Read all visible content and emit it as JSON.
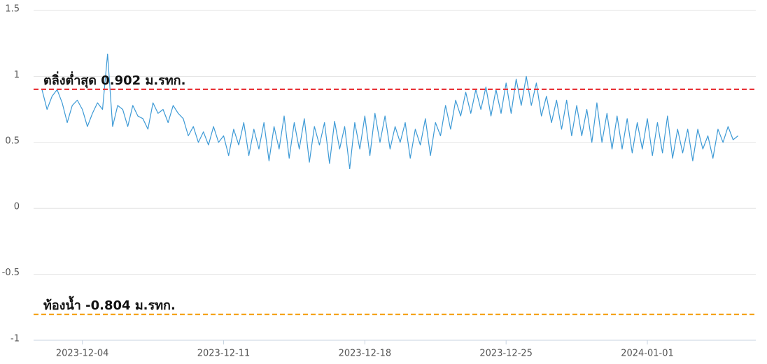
{
  "chart_data": {
    "type": "line",
    "x": [
      "2023-12-02T00:00",
      "2023-12-02T06:00",
      "2023-12-02T12:00",
      "2023-12-02T18:00",
      "2023-12-03T00:00",
      "2023-12-03T06:00",
      "2023-12-03T12:00",
      "2023-12-03T18:00",
      "2023-12-04T00:00",
      "2023-12-04T06:00",
      "2023-12-04T12:00",
      "2023-12-04T18:00",
      "2023-12-05T00:00",
      "2023-12-05T06:00",
      "2023-12-05T12:00",
      "2023-12-05T18:00",
      "2023-12-06T00:00",
      "2023-12-06T06:00",
      "2023-12-06T12:00",
      "2023-12-06T18:00",
      "2023-12-07T00:00",
      "2023-12-07T06:00",
      "2023-12-07T12:00",
      "2023-12-07T18:00",
      "2023-12-08T00:00",
      "2023-12-08T06:00",
      "2023-12-08T12:00",
      "2023-12-08T18:00",
      "2023-12-09T00:00",
      "2023-12-09T06:00",
      "2023-12-09T12:00",
      "2023-12-09T18:00",
      "2023-12-10T00:00",
      "2023-12-10T06:00",
      "2023-12-10T12:00",
      "2023-12-10T18:00",
      "2023-12-11T00:00",
      "2023-12-11T06:00",
      "2023-12-11T12:00",
      "2023-12-11T18:00",
      "2023-12-12T00:00",
      "2023-12-12T06:00",
      "2023-12-12T12:00",
      "2023-12-12T18:00",
      "2023-12-13T00:00",
      "2023-12-13T06:00",
      "2023-12-13T12:00",
      "2023-12-13T18:00",
      "2023-12-14T00:00",
      "2023-12-14T06:00",
      "2023-12-14T12:00",
      "2023-12-14T18:00",
      "2023-12-15T00:00",
      "2023-12-15T06:00",
      "2023-12-15T12:00",
      "2023-12-15T18:00",
      "2023-12-16T00:00",
      "2023-12-16T06:00",
      "2023-12-16T12:00",
      "2023-12-16T18:00",
      "2023-12-17T00:00",
      "2023-12-17T06:00",
      "2023-12-17T12:00",
      "2023-12-17T18:00",
      "2023-12-18T00:00",
      "2023-12-18T06:00",
      "2023-12-18T12:00",
      "2023-12-18T18:00",
      "2023-12-19T00:00",
      "2023-12-19T06:00",
      "2023-12-19T12:00",
      "2023-12-19T18:00",
      "2023-12-20T00:00",
      "2023-12-20T06:00",
      "2023-12-20T12:00",
      "2023-12-20T18:00",
      "2023-12-21T00:00",
      "2023-12-21T06:00",
      "2023-12-21T12:00",
      "2023-12-21T18:00",
      "2023-12-22T00:00",
      "2023-12-22T06:00",
      "2023-12-22T12:00",
      "2023-12-22T18:00",
      "2023-12-23T00:00",
      "2023-12-23T06:00",
      "2023-12-23T12:00",
      "2023-12-23T18:00",
      "2023-12-24T00:00",
      "2023-12-24T06:00",
      "2023-12-24T12:00",
      "2023-12-24T18:00",
      "2023-12-25T00:00",
      "2023-12-25T06:00",
      "2023-12-25T12:00",
      "2023-12-25T18:00",
      "2023-12-26T00:00",
      "2023-12-26T06:00",
      "2023-12-26T12:00",
      "2023-12-26T18:00",
      "2023-12-27T00:00",
      "2023-12-27T06:00",
      "2023-12-27T12:00",
      "2023-12-27T18:00",
      "2023-12-28T00:00",
      "2023-12-28T06:00",
      "2023-12-28T12:00",
      "2023-12-28T18:00",
      "2023-12-29T00:00",
      "2023-12-29T06:00",
      "2023-12-29T12:00",
      "2023-12-29T18:00",
      "2023-12-30T00:00",
      "2023-12-30T06:00",
      "2023-12-30T12:00",
      "2023-12-30T18:00",
      "2023-12-31T00:00",
      "2023-12-31T06:00",
      "2023-12-31T12:00",
      "2023-12-31T18:00",
      "2024-01-01T00:00",
      "2024-01-01T06:00",
      "2024-01-01T12:00",
      "2024-01-01T18:00",
      "2024-01-02T00:00",
      "2024-01-02T06:00",
      "2024-01-02T12:00",
      "2024-01-02T18:00",
      "2024-01-03T00:00",
      "2024-01-03T06:00",
      "2024-01-03T12:00",
      "2024-01-03T18:00",
      "2024-01-04T00:00",
      "2024-01-04T06:00",
      "2024-01-04T12:00",
      "2024-01-04T18:00",
      "2024-01-05T00:00",
      "2024-01-05T06:00",
      "2024-01-05T12:00"
    ],
    "series": [
      {
        "color": "#3d9ad6",
        "values": [
          0.9,
          0.75,
          0.85,
          0.9,
          0.8,
          0.65,
          0.78,
          0.82,
          0.75,
          0.62,
          0.72,
          0.8,
          0.75,
          1.17,
          0.62,
          0.78,
          0.75,
          0.62,
          0.78,
          0.7,
          0.68,
          0.6,
          0.8,
          0.72,
          0.75,
          0.65,
          0.78,
          0.72,
          0.68,
          0.55,
          0.62,
          0.5,
          0.58,
          0.48,
          0.62,
          0.5,
          0.55,
          0.4,
          0.6,
          0.48,
          0.65,
          0.4,
          0.6,
          0.45,
          0.65,
          0.36,
          0.62,
          0.45,
          0.7,
          0.38,
          0.65,
          0.45,
          0.68,
          0.35,
          0.62,
          0.48,
          0.65,
          0.34,
          0.66,
          0.45,
          0.62,
          0.3,
          0.65,
          0.45,
          0.7,
          0.4,
          0.72,
          0.5,
          0.7,
          0.45,
          0.62,
          0.5,
          0.65,
          0.38,
          0.6,
          0.48,
          0.68,
          0.4,
          0.65,
          0.55,
          0.78,
          0.6,
          0.82,
          0.7,
          0.88,
          0.72,
          0.9,
          0.75,
          0.92,
          0.7,
          0.9,
          0.72,
          0.95,
          0.72,
          0.98,
          0.78,
          1.0,
          0.78,
          0.95,
          0.7,
          0.85,
          0.65,
          0.82,
          0.6,
          0.82,
          0.55,
          0.78,
          0.55,
          0.75,
          0.5,
          0.8,
          0.5,
          0.72,
          0.45,
          0.7,
          0.45,
          0.68,
          0.42,
          0.65,
          0.45,
          0.68,
          0.4,
          0.65,
          0.42,
          0.7,
          0.38,
          0.6,
          0.42,
          0.6,
          0.36,
          0.6,
          0.45,
          0.55,
          0.38,
          0.6,
          0.5,
          0.62,
          0.52,
          0.55
        ]
      }
    ],
    "xlim": [
      "2023-12-01T14:00",
      "2024-01-06T09:00"
    ],
    "xticks": [
      "2023-12-04",
      "2023-12-11",
      "2023-12-18",
      "2023-12-25",
      "2024-01-01"
    ],
    "ylim": [
      -1,
      1.5
    ],
    "yticks": [
      -1,
      -0.5,
      0,
      0.5,
      1,
      1.5
    ],
    "grid": true,
    "reference_lines": [
      {
        "label": "ตลิ่งต่ำสุด 0.902 ม.รทก.",
        "value": 0.902,
        "color": "#e8363a"
      },
      {
        "label": "ท้องน้ำ -0.804 ม.รทก.",
        "value": -0.804,
        "color": "#f5a31a"
      }
    ]
  }
}
